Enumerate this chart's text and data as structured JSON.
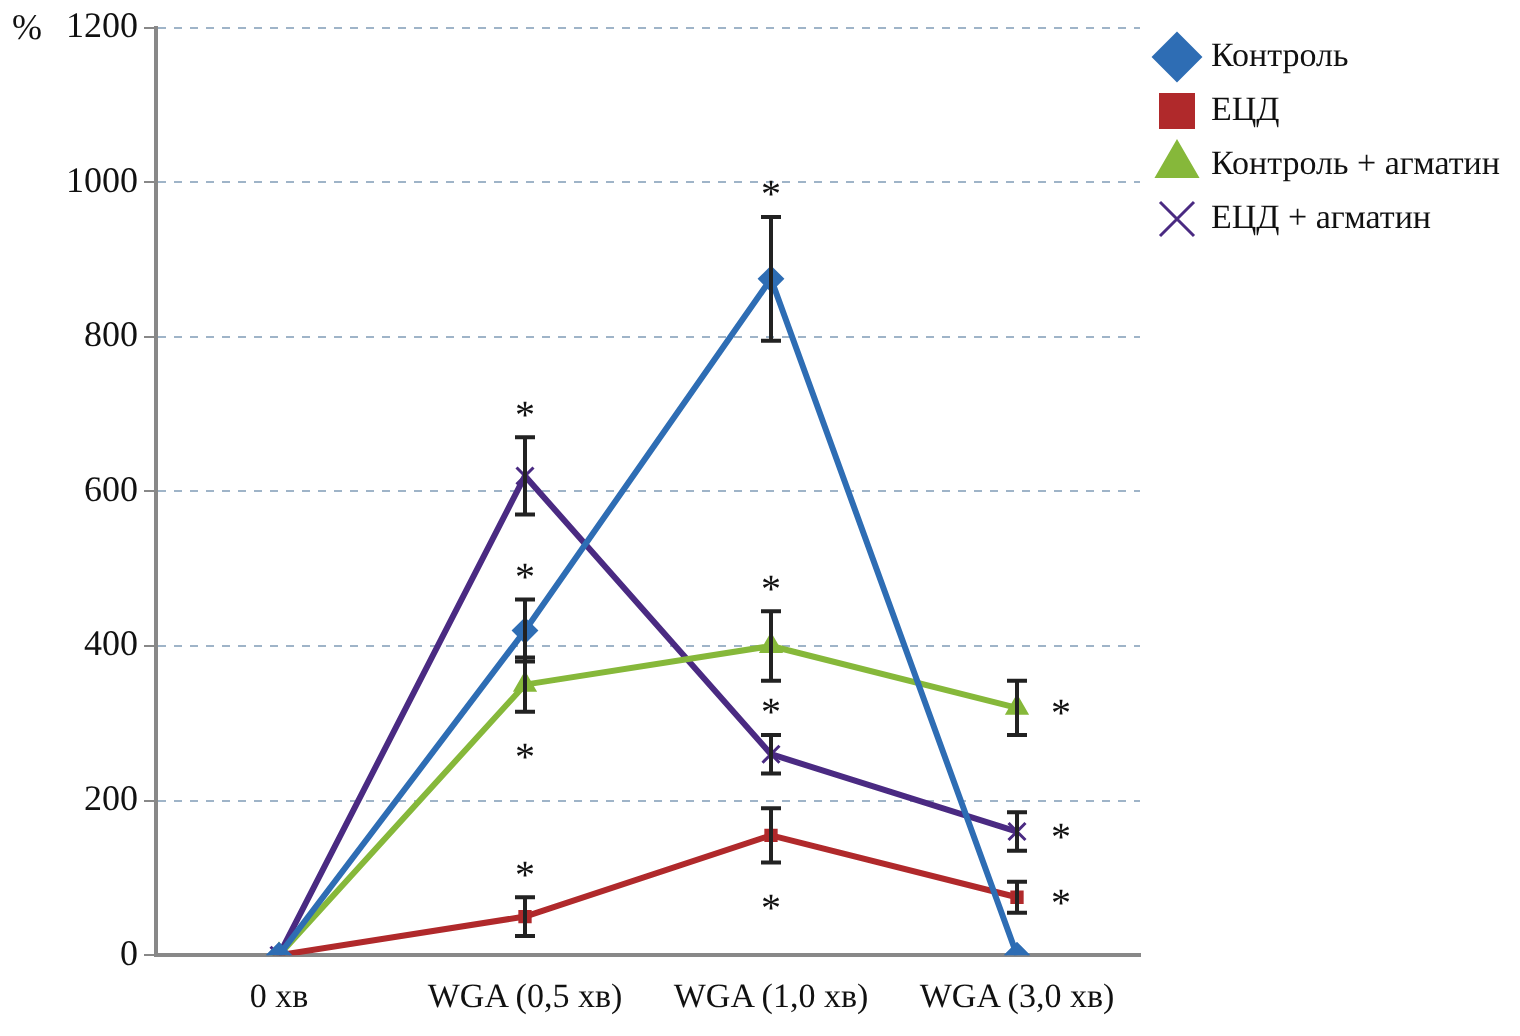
{
  "chart_data": {
    "type": "line",
    "ylabel": "%",
    "categories": [
      "0 хв",
      "WGA (0,5 хв)",
      "WGA (1,0 хв)",
      "WGA (3,0 хв)"
    ],
    "ylim": [
      0,
      1200
    ],
    "yticks": [
      0,
      200,
      400,
      600,
      800,
      1000,
      1200
    ],
    "grid": "y",
    "legend": "right",
    "series": [
      {
        "name": "Контроль",
        "color": "#2e6db4",
        "marker": "diamond",
        "values": [
          0,
          420,
          875,
          0
        ],
        "errors": [
          null,
          40,
          80,
          null
        ]
      },
      {
        "name": "ЕЦД",
        "color": "#b0292b",
        "marker": "square",
        "values": [
          0,
          50,
          155,
          75
        ],
        "errors": [
          null,
          25,
          35,
          20
        ]
      },
      {
        "name": "Контроль + агматин",
        "color": "#86b83a",
        "marker": "triangle",
        "values": [
          0,
          350,
          400,
          320
        ],
        "errors": [
          null,
          35,
          45,
          35
        ]
      },
      {
        "name": "ЕЦД + агматин",
        "color": "#4a2a82",
        "marker": "cross",
        "values": [
          0,
          620,
          260,
          160
        ],
        "errors": [
          null,
          50,
          25,
          25
        ]
      }
    ],
    "annotations": [
      {
        "text": "*",
        "x": "WGA (0,5 хв)",
        "y": 670
      },
      {
        "text": "*",
        "x": "WGA (0,5 хв)",
        "y": 460
      },
      {
        "text": "*",
        "x": "WGA (0,5 хв)",
        "y": 315
      },
      {
        "text": "*",
        "x": "WGA (0,5 хв)",
        "y": 75
      },
      {
        "text": "*",
        "x": "WGA (1,0 хв)",
        "y": 955
      },
      {
        "text": "*",
        "x": "WGA (1,0 хв)",
        "y": 445
      },
      {
        "text": "*",
        "x": "WGA (1,0 хв)",
        "y": 285
      },
      {
        "text": "*",
        "x": "WGA (1,0 хв)",
        "y": 120
      },
      {
        "text": "*",
        "x": "WGA (3,0 хв)",
        "y": 320
      },
      {
        "text": "*",
        "x": "WGA (3,0 хв)",
        "y": 160
      },
      {
        "text": "*",
        "x": "WGA (3,0 хв)",
        "y": 75
      }
    ]
  }
}
